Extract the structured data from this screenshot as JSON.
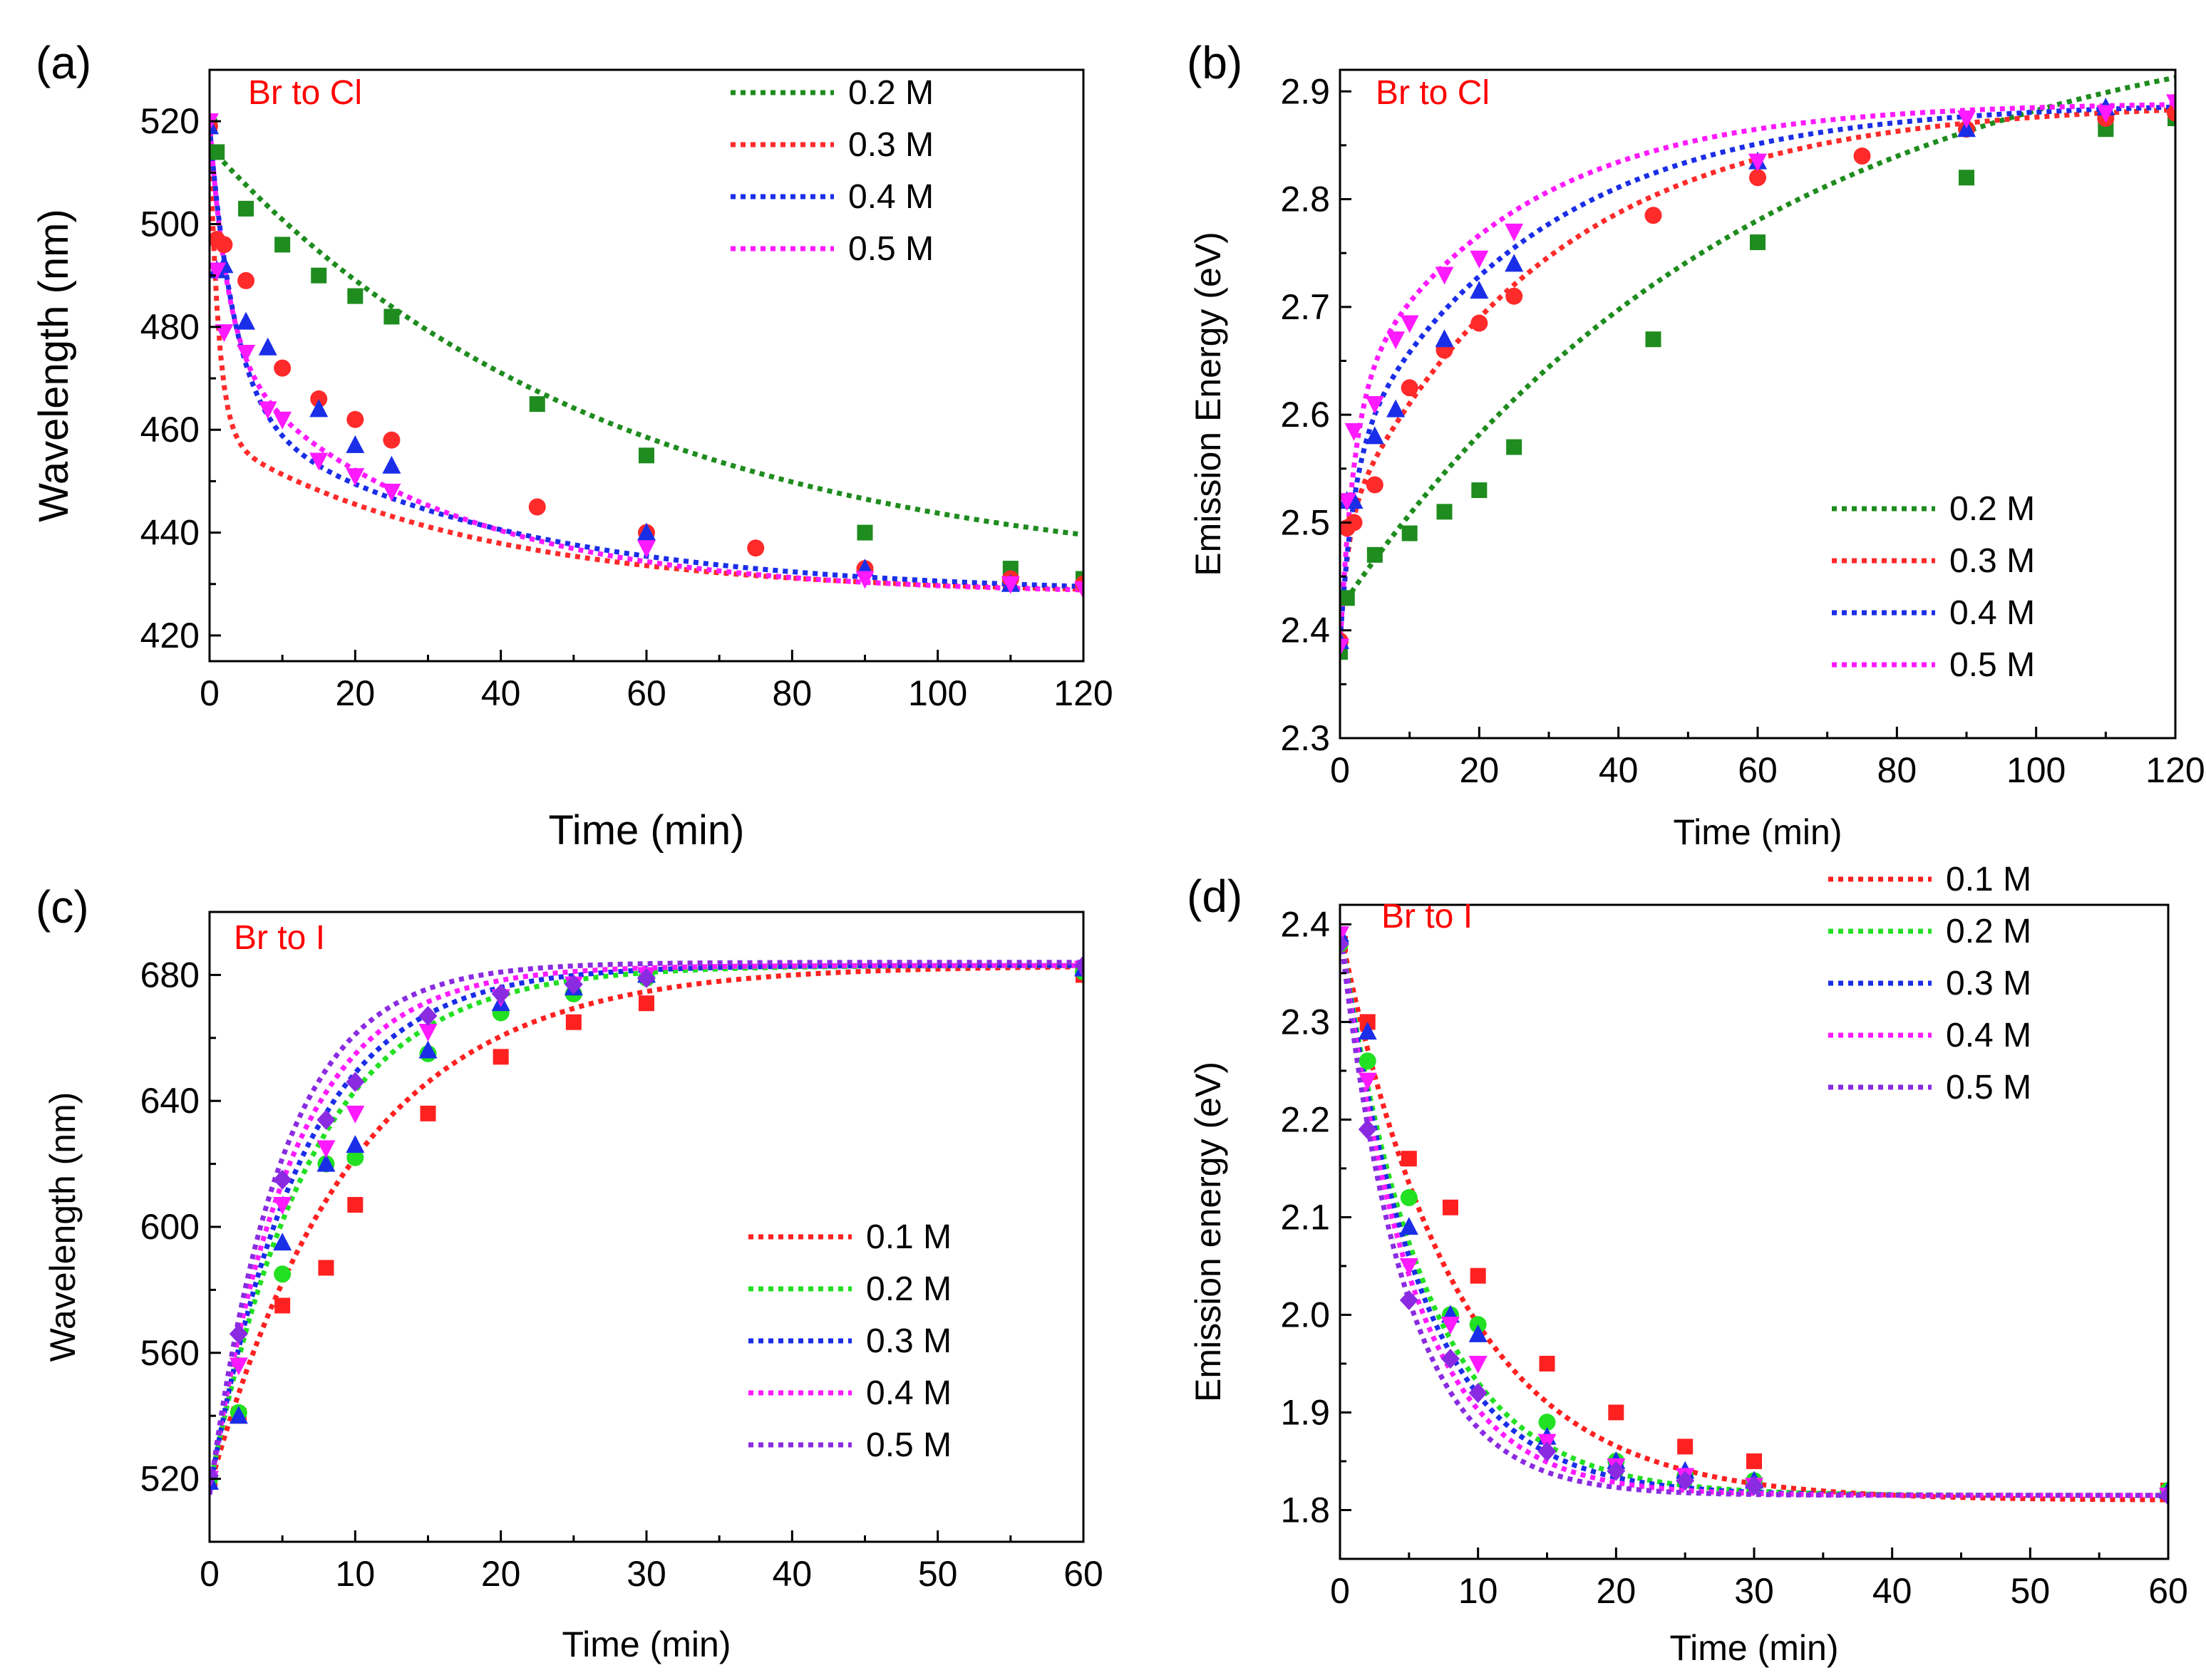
{
  "figure": {
    "panel_labels": [
      "(a)",
      "(b)",
      "(c)",
      "(d)"
    ]
  },
  "chart_data": [
    {
      "id": "a",
      "type": "scatter",
      "panel_label": "(a)",
      "annotation": "Br to Cl",
      "annotation_color": "#ff0000",
      "xlabel": "Time (min)",
      "ylabel": "Wavelength (nm)",
      "xlim": [
        0,
        120
      ],
      "ylim": [
        415,
        530
      ],
      "xticks": [
        0,
        20,
        40,
        60,
        80,
        100,
        120
      ],
      "yticks": [
        420,
        440,
        460,
        480,
        500,
        520
      ],
      "legend_position": "top-right",
      "series": [
        {
          "name": "0.2 M",
          "color": "#1e8c1e",
          "marker": "square",
          "x": [
            0,
            1,
            5,
            10,
            15,
            20,
            25,
            45,
            60,
            90,
            110,
            120
          ],
          "y": [
            519,
            514,
            503,
            496,
            490,
            486,
            482,
            465,
            455,
            440,
            433,
            431
          ],
          "fit": {
            "A": 515,
            "B": 85,
            "tau": 55
          }
        },
        {
          "name": "0.3 M",
          "color": "#ff2a2a",
          "marker": "circle",
          "x": [
            0,
            1,
            2,
            5,
            10,
            15,
            20,
            25,
            45,
            60,
            75,
            90,
            110,
            120
          ],
          "y": [
            519,
            497,
            496,
            489,
            472,
            466,
            462,
            458,
            445,
            440,
            437,
            433,
            431,
            430
          ],
          "fit": {
            "A": 519,
            "B": 60,
            "tau": 1.2,
            "C": 31,
            "tau2": 35,
            "floor": 428
          }
        },
        {
          "name": "0.4 M",
          "color": "#1a2ee8",
          "marker": "triangle-up",
          "x": [
            0,
            1,
            2,
            5,
            8,
            15,
            20,
            25,
            60,
            90,
            110
          ],
          "y": [
            519,
            491,
            492,
            481,
            476,
            464,
            457,
            453,
            440,
            433,
            430
          ],
          "fit": {
            "A": 519,
            "B": 55,
            "tau": 3.5,
            "C": 36,
            "tau2": 38,
            "floor": 428
          }
        },
        {
          "name": "0.5 M",
          "color": "#ff1aff",
          "marker": "triangle-down",
          "x": [
            0,
            1,
            2,
            5,
            8,
            10,
            15,
            20,
            25,
            60,
            90,
            110,
            120
          ],
          "y": [
            520,
            491,
            479,
            475,
            464,
            462,
            454,
            451,
            448,
            437,
            431,
            430,
            429
          ],
          "fit": {
            "A": 520,
            "B": 45,
            "tau": 2.5,
            "C": 47,
            "tau2": 30,
            "floor": 428
          }
        }
      ]
    },
    {
      "id": "b",
      "type": "scatter",
      "panel_label": "(b)",
      "annotation": "Br to Cl",
      "annotation_color": "#ff0000",
      "xlabel": "Time (min)",
      "ylabel": "Emission Energy (eV)",
      "xlim": [
        0,
        120
      ],
      "ylim": [
        2.3,
        2.92
      ],
      "xticks": [
        0,
        20,
        40,
        60,
        80,
        100,
        120
      ],
      "yticks": [
        2.3,
        2.4,
        2.5,
        2.6,
        2.7,
        2.8,
        2.9
      ],
      "ytick_decimals": 1,
      "legend_position": "bottom-right",
      "series": [
        {
          "name": "0.2 M",
          "color": "#1e8c1e",
          "marker": "square",
          "x": [
            0,
            1,
            5,
            10,
            15,
            20,
            25,
            45,
            60,
            90,
            110,
            120
          ],
          "y": [
            2.38,
            2.43,
            2.47,
            2.49,
            2.51,
            2.53,
            2.57,
            2.67,
            2.76,
            2.82,
            2.865,
            2.875
          ],
          "fit": {
            "A": 2.42,
            "B": 0.57,
            "tau": 60,
            "sign": 1
          }
        },
        {
          "name": "0.3 M",
          "color": "#ff2a2a",
          "marker": "circle",
          "x": [
            0,
            1,
            2,
            5,
            10,
            15,
            20,
            25,
            45,
            60,
            75,
            90,
            110,
            120
          ],
          "y": [
            2.39,
            2.495,
            2.5,
            2.535,
            2.625,
            2.66,
            2.685,
            2.71,
            2.785,
            2.82,
            2.84,
            2.865,
            2.875,
            2.88
          ],
          "fit": {
            "A": 2.39,
            "B": 0.11,
            "tau": 1.2,
            "C": 0.39,
            "tau2": 30,
            "top": 2.89,
            "sign": 1
          }
        },
        {
          "name": "0.4 M",
          "color": "#1a2ee8",
          "marker": "triangle-up",
          "x": [
            0,
            1,
            2,
            5,
            8,
            15,
            20,
            25,
            60,
            90,
            110
          ],
          "y": [
            2.39,
            2.52,
            2.52,
            2.58,
            2.605,
            2.67,
            2.715,
            2.74,
            2.835,
            2.865,
            2.885
          ],
          "fit": {
            "A": 2.39,
            "B": 0.17,
            "tau": 2.0,
            "C": 0.33,
            "tau2": 28,
            "top": 2.89,
            "sign": 1
          }
        },
        {
          "name": "0.5 M",
          "color": "#ff1aff",
          "marker": "triangle-down",
          "x": [
            0,
            1,
            2,
            5,
            8,
            10,
            15,
            20,
            25,
            60,
            90,
            110,
            120
          ],
          "y": [
            2.385,
            2.52,
            2.585,
            2.61,
            2.67,
            2.685,
            2.73,
            2.745,
            2.77,
            2.835,
            2.875,
            2.88,
            2.89
          ],
          "fit": {
            "A": 2.385,
            "B": 0.23,
            "tau": 2.0,
            "C": 0.275,
            "tau2": 25,
            "top": 2.895,
            "sign": 1
          }
        }
      ]
    },
    {
      "id": "c",
      "type": "scatter",
      "panel_label": "(c)",
      "annotation": "Br to I",
      "annotation_color": "#ff0000",
      "xlabel": "Time (min)",
      "ylabel": "Wavelength (nm)",
      "xlim": [
        0,
        60
      ],
      "ylim": [
        500,
        700
      ],
      "xticks": [
        0,
        10,
        20,
        30,
        40,
        50,
        60
      ],
      "yticks": [
        520,
        560,
        600,
        640,
        680
      ],
      "legend_position": "bottom-right",
      "series": [
        {
          "name": "0.1 M",
          "color": "#ff2020",
          "marker": "square",
          "x": [
            0,
            2,
            5,
            8,
            10,
            15,
            20,
            25,
            30,
            60
          ],
          "y": [
            520,
            540,
            575,
            587,
            607,
            636,
            654,
            665,
            671,
            680
          ],
          "fit": {
            "A": 517,
            "B": 166,
            "tau": 10
          }
        },
        {
          "name": "0.2 M",
          "color": "#22e022",
          "marker": "circle",
          "x": [
            0,
            2,
            5,
            8,
            10,
            15,
            20,
            25,
            30,
            60
          ],
          "y": [
            520,
            541,
            585,
            620,
            622,
            655,
            668,
            674,
            679,
            681
          ],
          "fit": {
            "A": 517,
            "B": 166,
            "tau": 7
          }
        },
        {
          "name": "0.3 M",
          "color": "#1a2ee8",
          "marker": "triangle-up",
          "x": [
            0,
            2,
            5,
            8,
            10,
            15,
            20,
            25,
            30,
            60
          ],
          "y": [
            519,
            540,
            595,
            620,
            626,
            656,
            671,
            676,
            680,
            682
          ],
          "fit": {
            "A": 516,
            "B": 167,
            "tau": 6.3
          }
        },
        {
          "name": "0.4 M",
          "color": "#ff1aff",
          "marker": "triangle-down",
          "x": [
            0,
            2,
            5,
            8,
            10,
            15,
            20,
            25,
            30,
            60
          ],
          "y": [
            520,
            556,
            607,
            625,
            636,
            662,
            673,
            677,
            680,
            682
          ],
          "fit": {
            "A": 515,
            "B": 168,
            "tau": 5.6
          }
        },
        {
          "name": "0.5 M",
          "color": "#8a2be2",
          "marker": "diamond",
          "x": [
            0,
            2,
            5,
            8,
            10,
            15,
            20,
            25,
            30,
            60
          ],
          "y": [
            521,
            566,
            615,
            634,
            646,
            667,
            674,
            677,
            679,
            683
          ],
          "fit": {
            "A": 515,
            "B": 169,
            "tau": 5.0
          }
        }
      ]
    },
    {
      "id": "d",
      "type": "scatter",
      "panel_label": "(d)",
      "annotation": "Br to I",
      "annotation_color": "#ff0000",
      "xlabel": "Time (min)",
      "ylabel": "Emission energy (eV)",
      "xlim": [
        0,
        60
      ],
      "ylim": [
        1.75,
        2.42
      ],
      "xticks": [
        0,
        10,
        20,
        30,
        40,
        50,
        60
      ],
      "yticks": [
        1.8,
        1.9,
        2.0,
        2.1,
        2.2,
        2.3,
        2.4
      ],
      "ytick_decimals": 1,
      "legend_position": "top-right",
      "series": [
        {
          "name": "0.1 M",
          "color": "#ff2020",
          "marker": "square",
          "x": [
            0,
            2,
            5,
            8,
            10,
            15,
            20,
            25,
            30,
            60
          ],
          "y": [
            2.38,
            2.3,
            2.16,
            2.11,
            2.04,
            1.95,
            1.9,
            1.865,
            1.85,
            1.82
          ],
          "fit": {
            "A": 2.395,
            "B": -0.585,
            "tau": 8.5
          }
        },
        {
          "name": "0.2 M",
          "color": "#22e022",
          "marker": "circle",
          "x": [
            0,
            2,
            5,
            8,
            10,
            15,
            20,
            25,
            30,
            60
          ],
          "y": [
            2.38,
            2.26,
            2.12,
            2.0,
            1.99,
            1.89,
            1.85,
            1.835,
            1.83,
            1.82
          ],
          "fit": {
            "A": 2.395,
            "B": -0.58,
            "tau": 6.2
          }
        },
        {
          "name": "0.3 M",
          "color": "#1a2ee8",
          "marker": "triangle-up",
          "x": [
            0,
            2,
            5,
            8,
            10,
            15,
            20,
            25,
            30,
            60
          ],
          "y": [
            2.39,
            2.29,
            2.09,
            2.0,
            1.98,
            1.875,
            1.85,
            1.84,
            1.83,
            1.82
          ],
          "fit": {
            "A": 2.395,
            "B": -0.58,
            "tau": 5.8
          }
        },
        {
          "name": "0.4 M",
          "color": "#ff1aff",
          "marker": "triangle-down",
          "x": [
            0,
            2,
            5,
            8,
            10,
            15,
            20,
            25,
            30,
            60
          ],
          "y": [
            2.39,
            2.24,
            2.05,
            1.99,
            1.95,
            1.87,
            1.845,
            1.835,
            1.825,
            1.815
          ],
          "fit": {
            "A": 2.395,
            "B": -0.58,
            "tau": 5.3
          }
        },
        {
          "name": "0.5 M",
          "color": "#8a2be2",
          "marker": "diamond",
          "x": [
            0,
            2,
            5,
            8,
            10,
            15,
            20,
            25,
            30,
            60
          ],
          "y": [
            2.38,
            2.19,
            2.015,
            1.955,
            1.92,
            1.86,
            1.84,
            1.83,
            1.825,
            1.815
          ],
          "fit": {
            "A": 2.395,
            "B": -0.58,
            "tau": 4.7
          }
        }
      ]
    }
  ]
}
